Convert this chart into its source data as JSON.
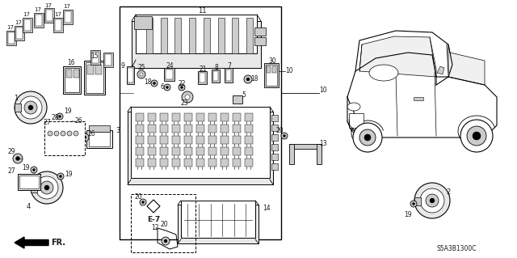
{
  "bg_color": "#ffffff",
  "diagram_code": "S5A3B1300C",
  "fig_width": 6.4,
  "fig_height": 3.19,
  "dpi": 100,
  "arrow_label": "FR.",
  "ref_label": "E-7",
  "lc": "#1a1a1a",
  "tc": "#1a1a1a",
  "gray1": "#aaaaaa",
  "gray2": "#cccccc",
  "gray3": "#e8e8e8"
}
